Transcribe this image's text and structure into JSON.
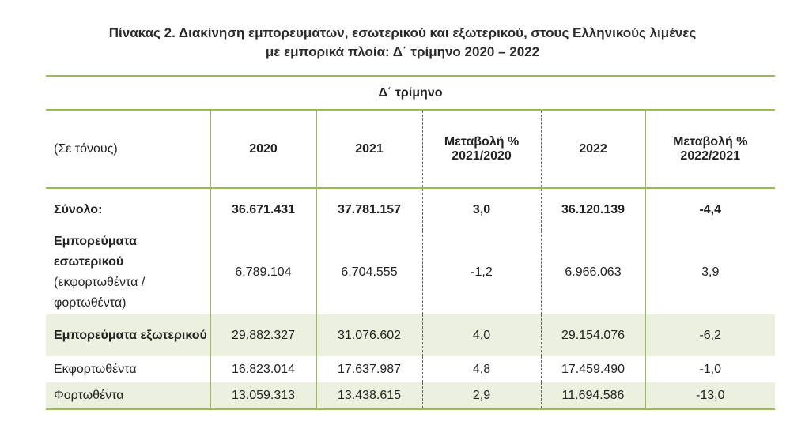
{
  "title": {
    "line1": "Πίνακας 2. Διακίνηση εμπορευμάτων, εσωτερικού και εξωτερικού, στους Ελληνικούς λιμένες",
    "line2": "με εμπορικά πλοία: Δ΄ τρίμηνο 2020 – 2022"
  },
  "table": {
    "period_header": "Δ΄ τρίμηνο",
    "headers": {
      "unit": "(Σε τόνους)",
      "y2020": "2020",
      "y2021": "2021",
      "chg_2021": "Μεταβολή % 2021/2020",
      "y2022": "2022",
      "chg_2022": "Μεταβολή % 2022/2021"
    },
    "rows": [
      {
        "label": "Σύνολο:",
        "v2020": "36.671.431",
        "v2021": "37.781.157",
        "c2021": "3,0",
        "v2022": "36.120.139",
        "c2022": "-4,4"
      },
      {
        "label_bold": "Εμπορεύματα εσωτερικού",
        "label_sub": "(εκφορτωθέντα / φορτωθέντα)",
        "v2020": "6.789.104",
        "v2021": "6.704.555",
        "c2021": "-1,2",
        "v2022": "6.966.063",
        "c2022": "3,9"
      },
      {
        "label": "Εμπορεύματα εξωτερικού",
        "v2020": "29.882.327",
        "v2021": "31.076.602",
        "c2021": "4,0",
        "v2022": "29.154.076",
        "c2022": "-6,2"
      },
      {
        "label": "Εκφορτωθέντα",
        "v2020": "16.823.014",
        "v2021": "17.637.987",
        "c2021": "4,8",
        "v2022": "17.459.490",
        "c2022": "-1,0"
      },
      {
        "label": "Φορτωθέντα",
        "v2020": "13.059.313",
        "v2021": "13.438.615",
        "c2021": "2,9",
        "v2022": "11.694.586",
        "c2022": "-13,0"
      }
    ]
  },
  "colors": {
    "accent_border": "#9bbb59",
    "band_fill": "#ebf1de"
  }
}
